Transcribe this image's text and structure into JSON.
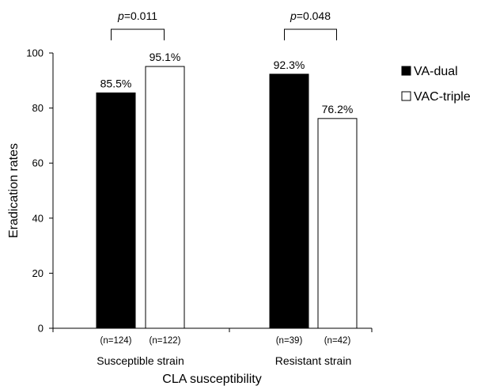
{
  "chart_data": {
    "type": "bar",
    "title": "",
    "xlabel": "CLA susceptibility",
    "ylabel": "Eradication rates",
    "ylim": [
      0,
      100
    ],
    "yticks": [
      0,
      20,
      40,
      60,
      80,
      100
    ],
    "grid": false,
    "legend_position": "right",
    "categories": [
      "Susceptible strain",
      "Resistant strain"
    ],
    "series": [
      {
        "name": "VA-dual",
        "color": "#000000",
        "values": [
          85.5,
          92.3
        ],
        "labels": [
          "85.5%",
          "92.3%"
        ],
        "n": [
          "(n=124)",
          "(n=39)"
        ]
      },
      {
        "name": "VAC-triple",
        "color": "#ffffff",
        "values": [
          95.1,
          76.2
        ],
        "labels": [
          "95.1%",
          "76.2%"
        ],
        "n": [
          "(n=122)",
          "(n=42)"
        ]
      }
    ],
    "annotations": [
      {
        "category": 0,
        "p_symbol": "p",
        "p_value": "=0.011"
      },
      {
        "category": 1,
        "p_symbol": "p",
        "p_value": "=0.048"
      }
    ]
  }
}
